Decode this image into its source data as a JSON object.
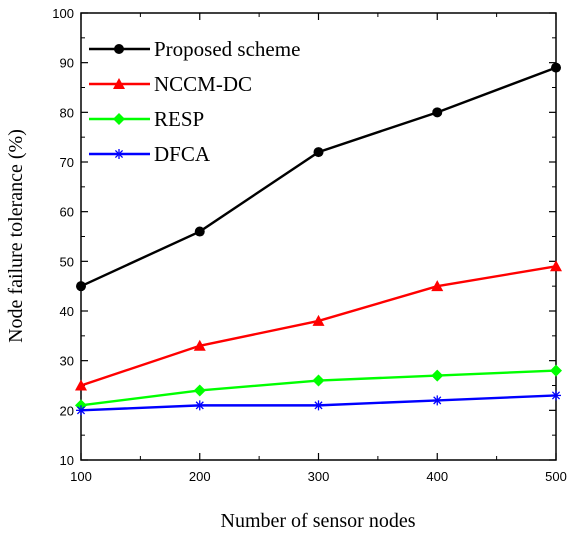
{
  "chart_data": {
    "type": "line",
    "xlabel": "Number of sensor nodes",
    "ylabel": "Node failure tolerance (%)",
    "x": [
      100,
      200,
      300,
      400,
      500
    ],
    "xlim": [
      100,
      500
    ],
    "ylim": [
      10,
      100
    ],
    "xticks": [
      "100",
      "200",
      "300",
      "400",
      "500"
    ],
    "yticks": [
      "10",
      "20",
      "30",
      "40",
      "50",
      "60",
      "70",
      "80",
      "90",
      "100"
    ],
    "legend_position": "top-left",
    "grid": false,
    "series": [
      {
        "name": "Proposed scheme",
        "values": [
          45,
          56,
          72,
          80,
          89
        ],
        "color": "#000000",
        "marker": "circle"
      },
      {
        "name": "NCCM-DC",
        "values": [
          25,
          33,
          38,
          45,
          49
        ],
        "color": "#ff0000",
        "marker": "triangle"
      },
      {
        "name": "RESP",
        "values": [
          21,
          24,
          26,
          27,
          28
        ],
        "color": "#00ff00",
        "marker": "diamond"
      },
      {
        "name": "DFCA",
        "values": [
          20,
          21,
          21,
          22,
          23
        ],
        "color": "#0000ff",
        "marker": "asterisk"
      }
    ]
  }
}
